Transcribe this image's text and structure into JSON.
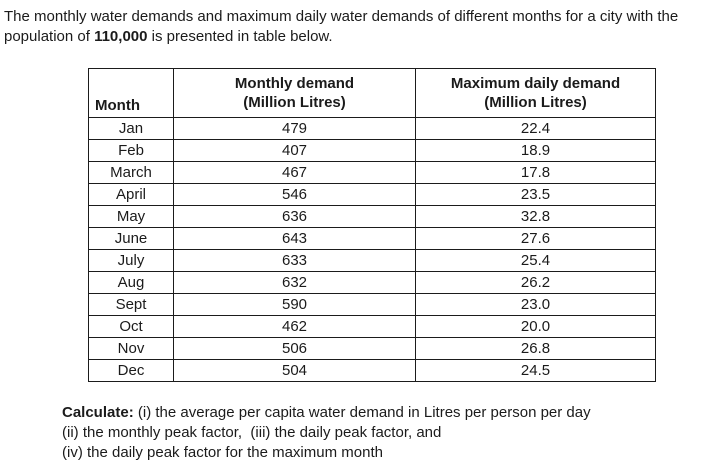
{
  "intro": {
    "text_before": "The monthly water demands and maximum daily water demands of different months for a city with the population of ",
    "population": "110,000",
    "text_after": " is presented in table below."
  },
  "table": {
    "headers": {
      "month": "Month",
      "monthly_line1": "Monthly demand",
      "monthly_line2": "(Million Litres)",
      "max_daily_line1": "Maximum daily demand",
      "max_daily_line2": "(Million Litres)"
    },
    "rows": [
      {
        "month": "Jan",
        "monthly_demand": "479",
        "max_daily_demand": "22.4"
      },
      {
        "month": "Feb",
        "monthly_demand": "407",
        "max_daily_demand": "18.9"
      },
      {
        "month": "March",
        "monthly_demand": "467",
        "max_daily_demand": "17.8"
      },
      {
        "month": "April",
        "monthly_demand": "546",
        "max_daily_demand": "23.5"
      },
      {
        "month": "May",
        "monthly_demand": "636",
        "max_daily_demand": "32.8"
      },
      {
        "month": "June",
        "monthly_demand": "643",
        "max_daily_demand": "27.6"
      },
      {
        "month": "July",
        "monthly_demand": "633",
        "max_daily_demand": "25.4"
      },
      {
        "month": "Aug",
        "monthly_demand": "632",
        "max_daily_demand": "26.2"
      },
      {
        "month": "Sept",
        "monthly_demand": "590",
        "max_daily_demand": "23.0"
      },
      {
        "month": "Oct",
        "monthly_demand": "462",
        "max_daily_demand": "20.0"
      },
      {
        "month": "Nov",
        "monthly_demand": "506",
        "max_daily_demand": "26.8"
      },
      {
        "month": "Dec",
        "monthly_demand": "504",
        "max_daily_demand": "24.5"
      }
    ]
  },
  "calculate": {
    "label": "Calculate:",
    "line1_rest": " (i) the average per capita water demand in Litres per person per day",
    "line2": "(ii) the monthly peak factor,  (iii) the daily peak factor, and",
    "line3": "(iv) the daily peak factor for the maximum month"
  }
}
